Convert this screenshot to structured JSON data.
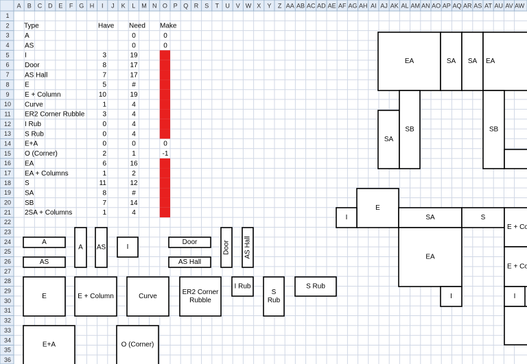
{
  "columns": [
    "A",
    "B",
    "C",
    "D",
    "E",
    "F",
    "G",
    "H",
    "I",
    "J",
    "K",
    "L",
    "M",
    "N",
    "O",
    "P",
    "Q",
    "R",
    "S",
    "T",
    "U",
    "V",
    "W",
    "X",
    "Y",
    "Z",
    "AA",
    "AB",
    "AC",
    "AD",
    "AE",
    "AF",
    "AG",
    "AH",
    "AI",
    "AJ",
    "AK",
    "AL",
    "AM",
    "AN",
    "AO",
    "AP",
    "AQ",
    "AR",
    "AS",
    "AT",
    "AU",
    "AV",
    "AW"
  ],
  "rows": [
    1,
    2,
    3,
    4,
    5,
    6,
    7,
    8,
    9,
    10,
    11,
    12,
    13,
    14,
    15,
    16,
    17,
    18,
    19,
    20,
    21,
    22,
    23,
    24,
    25,
    26,
    27,
    28,
    29,
    30,
    31,
    32,
    33,
    34,
    35,
    36
  ],
  "highlight_color": "#e8201f",
  "table": {
    "header": [
      "Type",
      "Have",
      "Need",
      "Make"
    ],
    "rows": [
      {
        "type": "A",
        "need": 0,
        "make": 0
      },
      {
        "type": "AS",
        "need": 0,
        "make": 0
      },
      {
        "type": "I",
        "have": 3,
        "need": 19,
        "highlight": true
      },
      {
        "type": "Door",
        "have": 8,
        "need": 17,
        "highlight": true
      },
      {
        "type": "AS Hall",
        "have": 7,
        "need": 17,
        "highlight": true
      },
      {
        "type": "E",
        "have": 5,
        "need": "#",
        "highlight": true
      },
      {
        "type": "E + Column",
        "have": 10,
        "need": 19,
        "highlight": true
      },
      {
        "type": "Curve",
        "have": 1,
        "need": 4,
        "highlight": true
      },
      {
        "type": "ER2 Corner Rubble",
        "have": 3,
        "need": 4,
        "highlight": true
      },
      {
        "type": "I Rub",
        "have": 0,
        "need": 4,
        "highlight": true
      },
      {
        "type": "S Rub",
        "have": 0,
        "need": 4,
        "highlight": true
      },
      {
        "type": "E+A",
        "have": 0,
        "need": 0,
        "make": 0
      },
      {
        "type": "O (Corner)",
        "have": 2,
        "need": 1,
        "make": -1
      },
      {
        "type": "EA",
        "have": 6,
        "need": 16,
        "highlight": true
      },
      {
        "type": "EA + Columns",
        "have": 1,
        "need": 2,
        "highlight": true
      },
      {
        "type": "S",
        "have": 11,
        "need": 12,
        "highlight": true
      },
      {
        "type": "SA",
        "have": 8,
        "need": "#",
        "highlight": true
      },
      {
        "type": "SB",
        "have": 7,
        "need": 14,
        "highlight": true
      },
      {
        "type": "2SA + Columns",
        "have": 1,
        "need": 4,
        "highlight": true
      }
    ]
  },
  "shapes": [
    {
      "lines": [
        "A"
      ]
    },
    {
      "lines": [
        "AS"
      ]
    },
    {
      "lines": [
        "A"
      ]
    },
    {
      "lines": [
        "AS"
      ]
    },
    {
      "lines": [
        "I"
      ]
    },
    {
      "lines": [
        "Door"
      ]
    },
    {
      "lines": [
        "AS Hall"
      ]
    },
    {
      "lines": [
        "Door"
      ],
      "rotated": true
    },
    {
      "lines": [
        "AS Hall"
      ],
      "rotated": true
    },
    {
      "lines": [
        "E"
      ]
    },
    {
      "lines": [
        "E + Column"
      ]
    },
    {
      "lines": [
        "Curve"
      ]
    },
    {
      "lines": [
        "ER2 Corner",
        "Rubble"
      ]
    },
    {
      "lines": [
        "I Rub"
      ]
    },
    {
      "lines": [
        "S",
        "Rub"
      ]
    },
    {
      "lines": [
        "S Rub"
      ]
    },
    {
      "lines": [
        "E+A"
      ]
    },
    {
      "lines": [
        "O (Corner)"
      ]
    },
    {
      "lines": [
        "EA"
      ]
    },
    {
      "lines": [
        "SA"
      ]
    },
    {
      "lines": [
        "SA"
      ]
    },
    {
      "lines": [
        "EA"
      ]
    },
    {
      "lines": [
        "SA"
      ]
    },
    {
      "lines": [
        "SB"
      ]
    },
    {
      "lines": [
        "SB"
      ]
    },
    {},
    {
      "lines": [
        "E"
      ]
    },
    {
      "lines": [
        "I"
      ]
    },
    {
      "lines": [
        "SA"
      ]
    },
    {
      "lines": [
        "S"
      ]
    },
    {
      "lines": [
        "E + Co"
      ]
    },
    {
      "lines": [
        "EA"
      ]
    },
    {
      "lines": [
        "E + Co"
      ]
    },
    {
      "lines": [
        "I"
      ]
    },
    {
      "lines": [
        "I"
      ]
    },
    {}
  ]
}
